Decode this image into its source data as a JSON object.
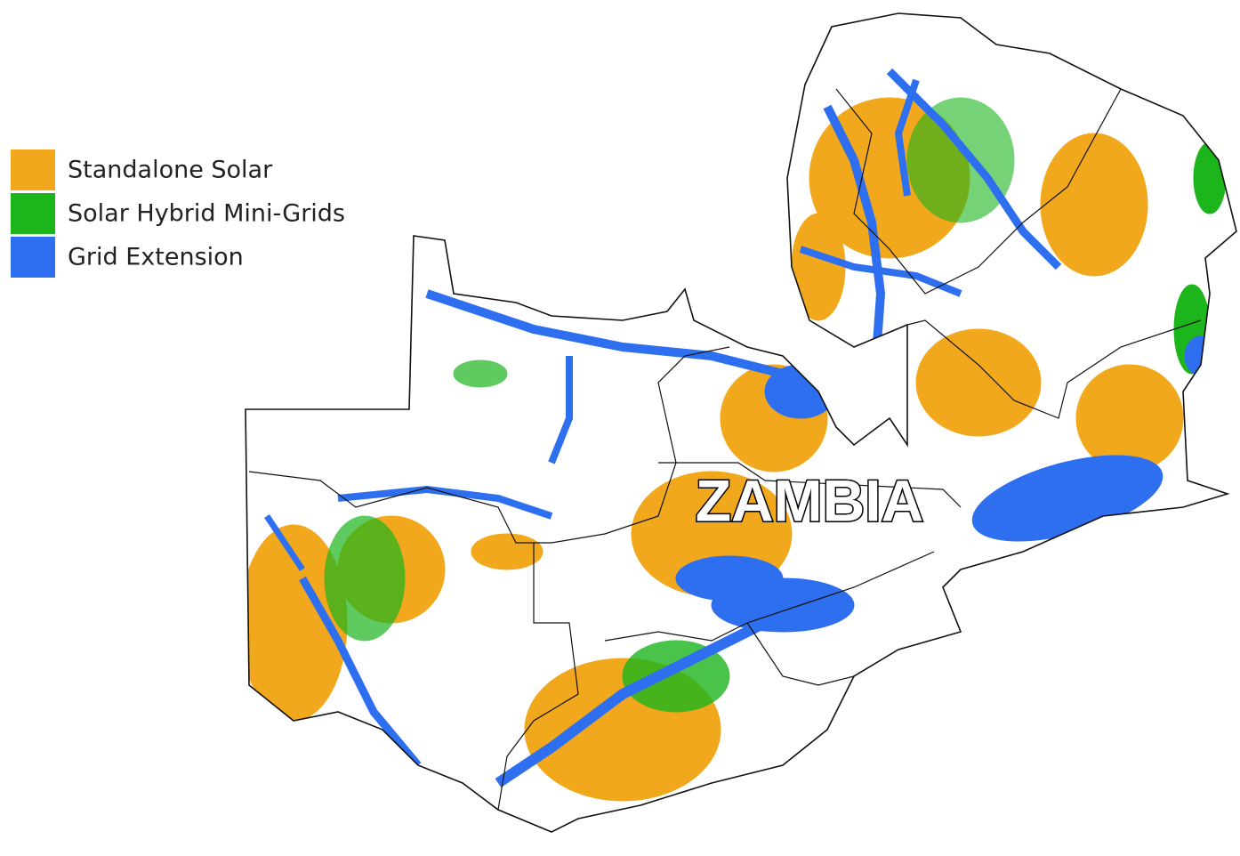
{
  "legend": {
    "items": [
      {
        "label": "Standalone Solar",
        "color": "#f2a81d"
      },
      {
        "label": "Solar Hybrid Mini-Grids",
        "color": "#1cb51c"
      },
      {
        "label": "Grid Extension",
        "color": "#2e6ff0"
      }
    ]
  },
  "map": {
    "label": "ZAMBIA"
  }
}
